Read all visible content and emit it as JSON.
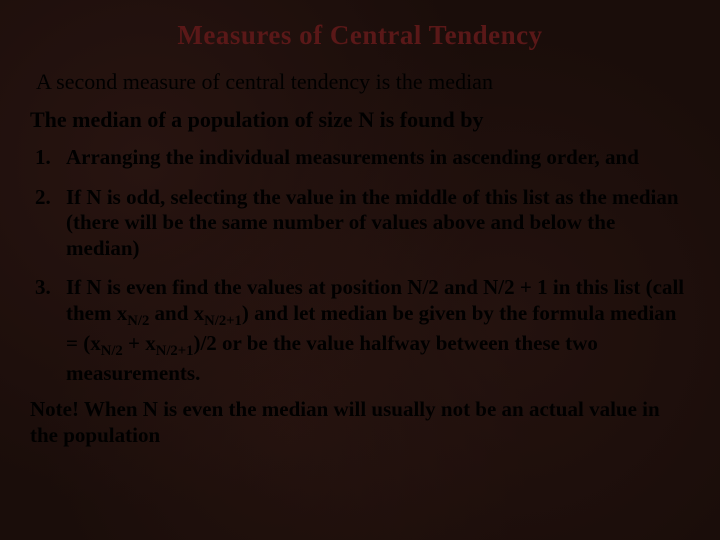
{
  "colors": {
    "background": "#1a0d0a",
    "title_color": "#5a1818",
    "text_color": "#000000"
  },
  "typography": {
    "font_family": "Times New Roman",
    "title_fontsize": 27,
    "title_weight": "bold",
    "body_fontsize": 22,
    "list_fontsize": 21,
    "list_weight": "bold"
  },
  "title": "Measures of Central Tendency",
  "intro": "A second measure of central tendency is the median",
  "subhead": "The median of a population of size N is found by",
  "steps": {
    "1": "Arranging the individual measurements in ascending order, and",
    "2": "If N is odd, selecting the value in the middle of this list as the median (there will be the same number of values above and below the median)",
    "3_pre": "If N is even find the values at position N/2 and N/2 + 1 in this list (call them x",
    "3_sub1": "N/2",
    "3_mid1": " and x",
    "3_sub2": "N/2+1",
    "3_mid2": ") and let median be given by the formula median = (x",
    "3_sub3": "N/2",
    "3_mid3": " + x",
    "3_sub4": "N/2+1",
    "3_post": ")/2 or be the value halfway between these two measurements."
  },
  "note": "Note! When N is even the median will usually not be an actual value in the population"
}
